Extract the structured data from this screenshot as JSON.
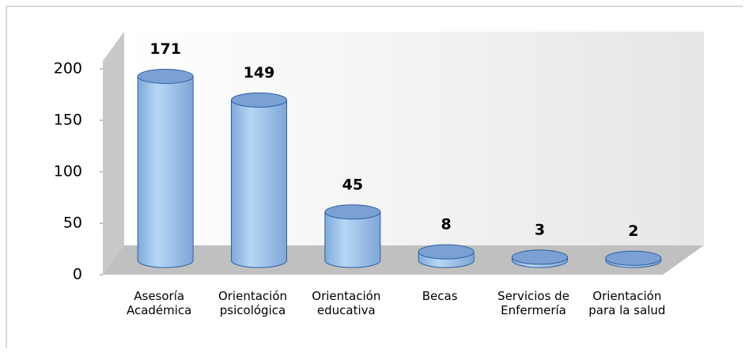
{
  "chart_data": {
    "type": "bar3d",
    "categories": [
      "Asesoría Académica",
      "Orientación psicológica",
      "Orientación educativa",
      "Becas",
      "Servicios de Enfermería",
      "Orientación para la salud"
    ],
    "values": [
      171,
      149,
      45,
      8,
      3,
      2
    ],
    "color": "#9ec5ec",
    "ylim": [
      0,
      200
    ],
    "yticks": [
      0,
      50,
      100,
      150,
      200
    ]
  }
}
